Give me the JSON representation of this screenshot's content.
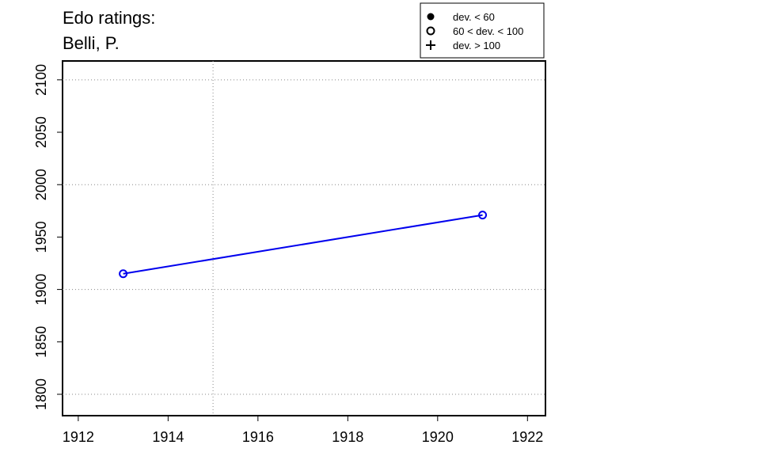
{
  "chart_data": {
    "type": "line",
    "title": "Edo ratings:",
    "subtitle": "Belli, P.",
    "x": [
      1913,
      1921
    ],
    "series": [
      {
        "name": "Belli, P.",
        "color": "#0000ee",
        "values": [
          1915,
          1971
        ],
        "symbols": [
          1,
          1
        ]
      }
    ],
    "xlim": [
      1911.65,
      1922.4
    ],
    "ylim": [
      1779.6,
      2118
    ],
    "xticks": [
      1912,
      1914,
      1916,
      1918,
      1920,
      1922
    ],
    "yticks": [
      1800,
      1850,
      1900,
      1950,
      2000,
      2050,
      2100
    ],
    "xgrid": [
      1915
    ],
    "ygrid": [
      1800,
      1900,
      2000,
      2100
    ],
    "legend": [
      {
        "label": "dev. < 60",
        "marker": "filled-circle"
      },
      {
        "label": "60 < dev. < 100",
        "marker": "open-circle"
      },
      {
        "label": "dev. > 100",
        "marker": "plus"
      }
    ],
    "legend_position": "top-right"
  }
}
